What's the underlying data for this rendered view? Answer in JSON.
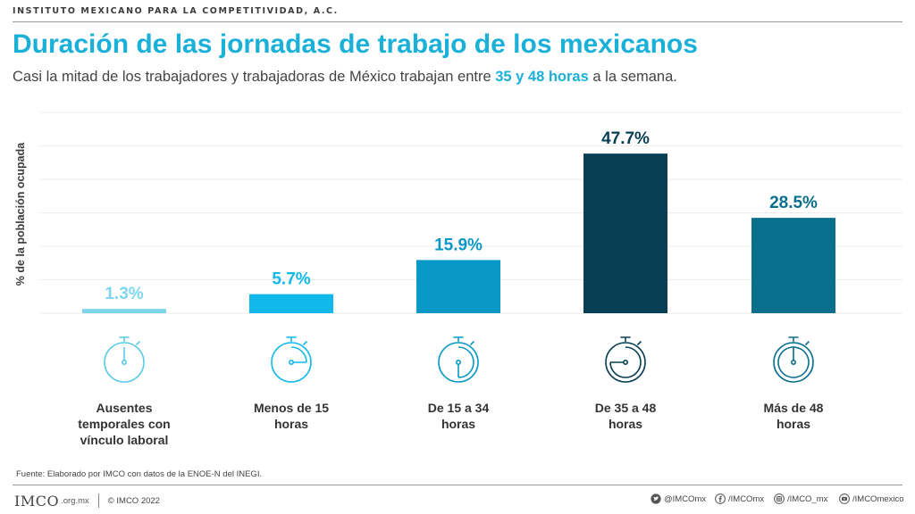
{
  "header": {
    "org": "INSTITUTO MEXICANO PARA LA COMPETITIVIDAD, A.C.",
    "title": "Duración de las jornadas de trabajo de los mexicanos",
    "subtitle_pre": "Casi la mitad de los trabajadores y trabajadoras de México trabajan entre",
    "subtitle_highlight": "35 y 48 horas",
    "subtitle_post": "a la semana."
  },
  "chart_data": {
    "type": "bar",
    "ylabel": "% de la población ocupada",
    "ylim": [
      0,
      60
    ],
    "grid": true,
    "categories": [
      "Ausentes temporales con vínculo laboral",
      "Menos de 15 horas",
      "De 15 a 34 horas",
      "De 35 a 48 horas",
      "Más de 48 horas"
    ],
    "category_lines": [
      [
        "Ausentes",
        "temporales con",
        "vínculo laboral"
      ],
      [
        "Menos de 15",
        "horas"
      ],
      [
        "De 15 a 34",
        "horas"
      ],
      [
        "De 35 a 48",
        "horas"
      ],
      [
        "Más de 48",
        "horas"
      ]
    ],
    "values": [
      1.3,
      5.7,
      15.9,
      47.7,
      28.5
    ],
    "value_labels": [
      "1.3%",
      "5.7%",
      "15.9%",
      "47.7%",
      "28.5%"
    ],
    "colors": [
      "#7fd6ec",
      "#11b9ea",
      "#0a98c6",
      "#083f55",
      "#0a6f8c"
    ],
    "icons": [
      "stopwatch-empty-icon",
      "stopwatch-quarter-icon",
      "stopwatch-half-icon",
      "stopwatch-three-quarter-icon",
      "stopwatch-full-icon"
    ]
  },
  "footer": {
    "source": "Fuente: Elaborado por IMCO con datos de la ENOE-N del INEGI.",
    "logo": "IMCO",
    "logo_domain": ".org.mx",
    "copyright": "© IMCO 2022",
    "social": [
      {
        "icon": "twitter-icon",
        "handle": "@IMCOmx"
      },
      {
        "icon": "facebook-icon",
        "handle": "/IMCOmx"
      },
      {
        "icon": "instagram-icon",
        "handle": "/IMCO_mx"
      },
      {
        "icon": "youtube-icon",
        "handle": "/IMCOmexico"
      }
    ]
  }
}
